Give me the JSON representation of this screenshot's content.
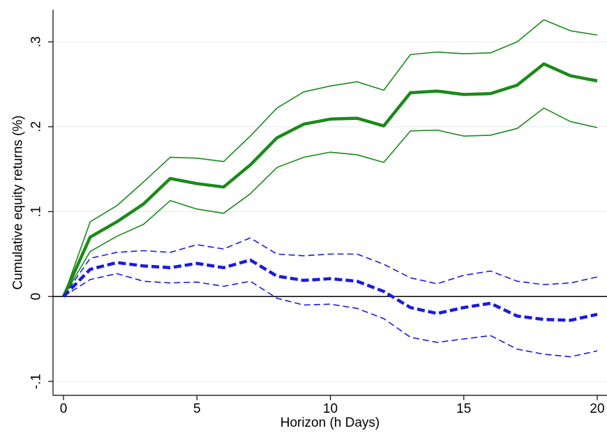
{
  "chart_data": {
    "type": "line",
    "title": "",
    "xlabel": "Horizon (h Days)",
    "ylabel": "Cumulative equity returns (%)",
    "xlim": [
      0,
      20
    ],
    "ylim": [
      -0.1,
      0.3
    ],
    "x_ticks": [
      0,
      5,
      10,
      15,
      20
    ],
    "x_tick_labels": [
      "0",
      "5",
      "10",
      "15",
      "20"
    ],
    "y_ticks": [
      -0.1,
      0,
      0.1,
      0.2,
      0.3
    ],
    "y_tick_labels": [
      "-.1",
      "0",
      ".1",
      ".2",
      ".3"
    ],
    "grid": true,
    "reference_line_y": 0,
    "x": [
      0,
      1,
      2,
      3,
      4,
      5,
      6,
      7,
      8,
      9,
      10,
      11,
      12,
      13,
      14,
      15,
      16,
      17,
      18,
      19,
      20
    ],
    "series": [
      {
        "color": "#1a8a1a",
        "style": "solid",
        "width": "thick",
        "values": [
          0,
          0.07,
          0.088,
          0.109,
          0.139,
          0.133,
          0.129,
          0.155,
          0.187,
          0.203,
          0.209,
          0.21,
          0.201,
          0.24,
          0.242,
          0.238,
          0.239,
          0.249,
          0.274,
          0.26,
          0.254
        ]
      },
      {
        "color": "#1a8a1a",
        "style": "solid",
        "width": "thin",
        "values": [
          0,
          0.088,
          0.107,
          0.135,
          0.164,
          0.163,
          0.159,
          0.189,
          0.222,
          0.241,
          0.248,
          0.253,
          0.243,
          0.285,
          0.288,
          0.286,
          0.287,
          0.3,
          0.326,
          0.313,
          0.308
        ]
      },
      {
        "color": "#1a8a1a",
        "style": "solid",
        "width": "thin",
        "values": [
          0,
          0.053,
          0.071,
          0.085,
          0.113,
          0.103,
          0.098,
          0.121,
          0.152,
          0.164,
          0.17,
          0.167,
          0.158,
          0.195,
          0.196,
          0.189,
          0.19,
          0.198,
          0.222,
          0.206,
          0.199
        ]
      },
      {
        "color": "#1a1ae0",
        "style": "dashed",
        "width": "thick",
        "values": [
          0,
          0.032,
          0.04,
          0.036,
          0.034,
          0.039,
          0.034,
          0.043,
          0.024,
          0.019,
          0.021,
          0.018,
          0.006,
          -0.013,
          -0.02,
          -0.013,
          -0.008,
          -0.023,
          -0.027,
          -0.028,
          -0.021
        ]
      },
      {
        "color": "#1a1ae0",
        "style": "dashed",
        "width": "thin",
        "values": [
          0,
          0.045,
          0.052,
          0.054,
          0.052,
          0.061,
          0.056,
          0.069,
          0.05,
          0.048,
          0.05,
          0.05,
          0.038,
          0.022,
          0.015,
          0.025,
          0.03,
          0.018,
          0.014,
          0.016,
          0.023
        ]
      },
      {
        "color": "#1a1ae0",
        "style": "dashed",
        "width": "thin",
        "values": [
          0,
          0.02,
          0.027,
          0.018,
          0.016,
          0.017,
          0.012,
          0.018,
          -0.002,
          -0.01,
          -0.009,
          -0.014,
          -0.026,
          -0.048,
          -0.054,
          -0.05,
          -0.046,
          -0.062,
          -0.068,
          -0.071,
          -0.064
        ]
      }
    ]
  }
}
